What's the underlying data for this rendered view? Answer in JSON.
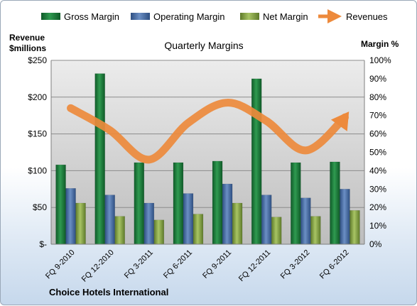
{
  "chart_data": {
    "type": "bar",
    "title": "Quarterly Margins",
    "company": "Choice Hotels International",
    "left_axis": {
      "label": [
        "Revenue",
        "$millions"
      ],
      "range": [
        0,
        250
      ],
      "ticks": [
        "$-",
        "$50",
        "$100",
        "$150",
        "$200",
        "$250"
      ]
    },
    "right_axis": {
      "label": "Margin %",
      "range": [
        0,
        100
      ],
      "ticks": [
        "0%",
        "10%",
        "20%",
        "30%",
        "40%",
        "50%",
        "60%",
        "70%",
        "80%",
        "90%",
        "100%"
      ]
    },
    "categories": [
      "FQ 9-2010",
      "FQ 12-2010",
      "FQ 3-2011",
      "FQ 6-2011",
      "FQ 9-2011",
      "FQ 12-2011",
      "FQ 3-2012",
      "FQ 6-2012"
    ],
    "series": [
      {
        "name": "Gross Margin",
        "kind": "bar",
        "axis": "left",
        "color": "#1e7a3c",
        "values": [
          108,
          232,
          111,
          111,
          113,
          225,
          111,
          112
        ]
      },
      {
        "name": "Operating Margin",
        "kind": "bar",
        "axis": "left",
        "color": "#4a6fa5",
        "values": [
          76,
          67,
          56,
          69,
          82,
          67,
          63,
          75
        ]
      },
      {
        "name": "Net Margin",
        "kind": "bar",
        "axis": "left",
        "color": "#8aa84a",
        "values": [
          56,
          38,
          33,
          41,
          56,
          37,
          38,
          46
        ]
      },
      {
        "name": "Revenues",
        "kind": "line",
        "axis": "right",
        "color": "#ed8a3c",
        "values": [
          74,
          62,
          46,
          66,
          77,
          67,
          51,
          69
        ]
      }
    ],
    "legend_position": "top",
    "grid": true
  }
}
